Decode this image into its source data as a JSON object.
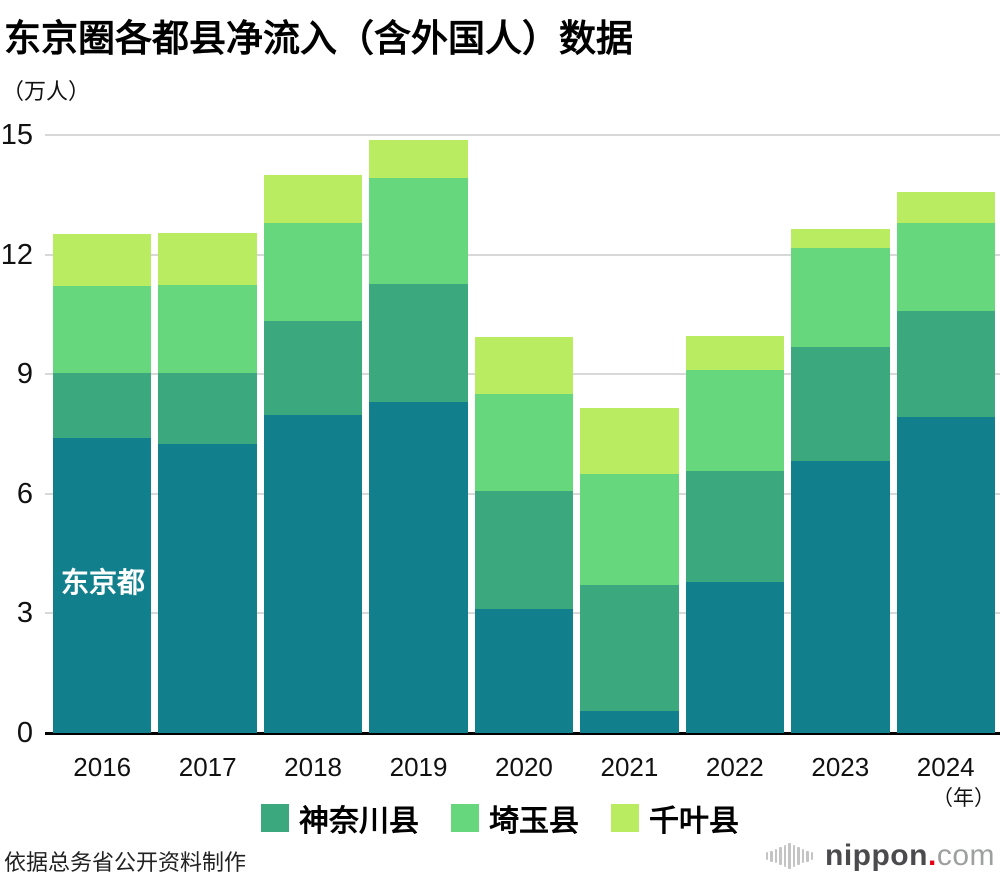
{
  "title": "东京圈各都县净流入（含外国人）数据",
  "unit_label": "（万人）",
  "chart_data": {
    "type": "bar",
    "stacked": true,
    "title": "东京圈各都县净流入（含外国人）数据",
    "ylabel": "（万人）",
    "xlabel": "（年）",
    "categories": [
      "2016",
      "2017",
      "2018",
      "2019",
      "2020",
      "2021",
      "2022",
      "2023",
      "2024"
    ],
    "ylim": [
      0,
      15
    ],
    "yticks": [
      0,
      3,
      6,
      9,
      12,
      15
    ],
    "grid": "horizontal",
    "legend_position": "bottom",
    "series": [
      {
        "name": "东京都",
        "color": "#12808C",
        "in_legend": false,
        "values": [
          7.4,
          7.24,
          7.98,
          8.3,
          3.11,
          0.54,
          3.8,
          6.83,
          7.93
        ]
      },
      {
        "name": "神奈川县",
        "color": "#3BA87D",
        "in_legend": true,
        "values": [
          1.62,
          1.79,
          2.35,
          2.96,
          2.96,
          3.18,
          2.76,
          2.86,
          2.66
        ]
      },
      {
        "name": "埼玉县",
        "color": "#66D77C",
        "in_legend": true,
        "values": [
          2.19,
          2.21,
          2.47,
          2.67,
          2.43,
          2.78,
          2.54,
          2.48,
          2.21
        ]
      },
      {
        "name": "千叶县",
        "color": "#BAEC62",
        "in_legend": true,
        "values": [
          1.31,
          1.3,
          1.2,
          0.95,
          1.43,
          1.66,
          0.86,
          0.48,
          0.78
        ]
      }
    ],
    "totals": [
      12.52,
      12.54,
      14.0,
      14.88,
      9.93,
      8.16,
      9.96,
      12.65,
      13.58
    ],
    "bar_annotation": {
      "text": "东京都",
      "category": "2016",
      "series": "东京都"
    },
    "x_axis_suffix": "（年）"
  },
  "footer": {
    "source_note": "依据总务省公开资料制作"
  },
  "logo": {
    "name": "nippon.com",
    "part1": "nippon",
    "dot": ".",
    "part2": "com"
  },
  "colors": {
    "gridline": "#D8D8D8",
    "axis": "#000000",
    "annotation_text": "#FFFFFF",
    "logo_bars": "#C4C4C4",
    "logo_nippon": "#4B4B4D",
    "logo_dot": "#E60012",
    "logo_com": "#9EA0A0"
  }
}
